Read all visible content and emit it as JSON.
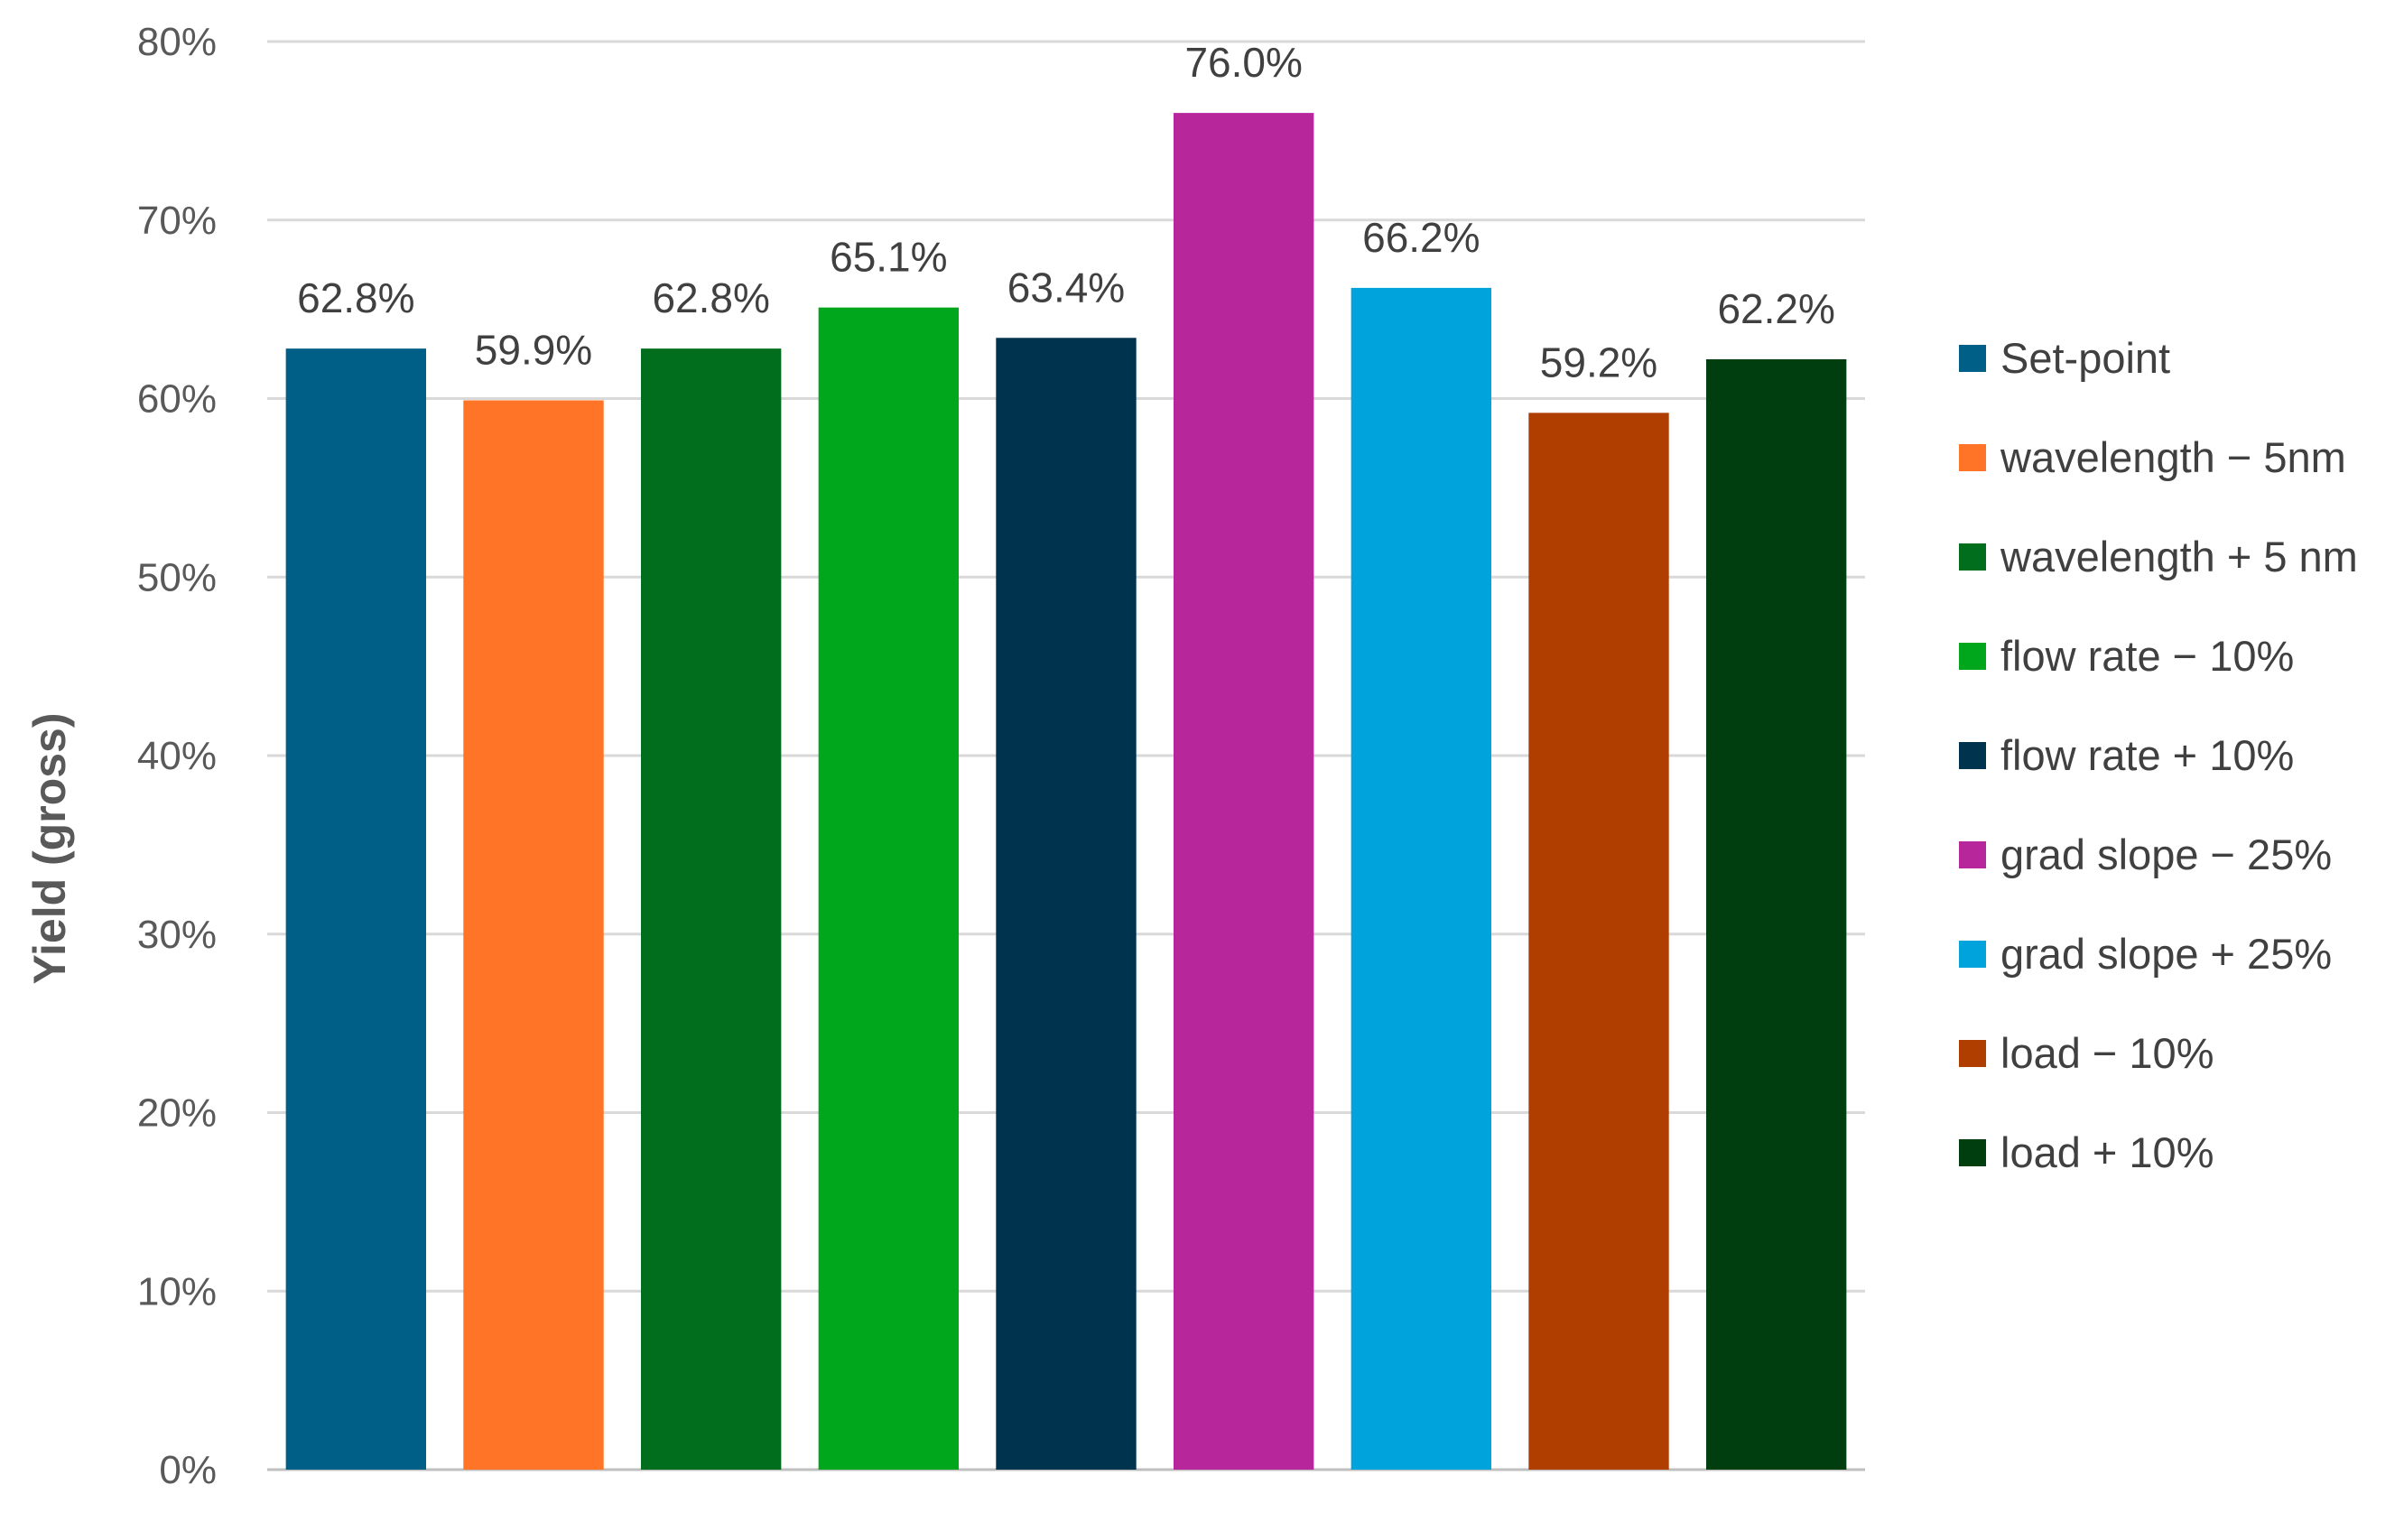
{
  "chart_data": {
    "type": "bar",
    "title": "",
    "xlabel": "",
    "ylabel": "Yield (gross)",
    "ylim": [
      0,
      80
    ],
    "yticks": [
      "0%",
      "10%",
      "20%",
      "30%",
      "40%",
      "50%",
      "60%",
      "70%",
      "80%"
    ],
    "grid": true,
    "legend_position": "right",
    "value_format": "percent-1dp",
    "categories": [
      "Set-point",
      "wavelength − 5nm",
      "wavelength + 5 nm",
      "flow rate − 10%",
      "flow rate + 10%",
      "grad slope − 25%",
      "grad slope + 25%",
      "load − 10%",
      "load + 10%"
    ],
    "values": [
      62.8,
      59.9,
      62.8,
      65.1,
      63.4,
      76.0,
      66.2,
      59.2,
      62.2
    ],
    "value_labels": [
      "62.8%",
      "59.9%",
      "62.8%",
      "65.1%",
      "63.4%",
      "76.0%",
      "66.2%",
      "59.2%",
      "62.2%"
    ],
    "colors": [
      "#005f86",
      "#ff7426",
      "#006e1c",
      "#00a61b",
      "#00334d",
      "#b8269c",
      "#00a3dc",
      "#b03e00",
      "#003d0f"
    ]
  }
}
